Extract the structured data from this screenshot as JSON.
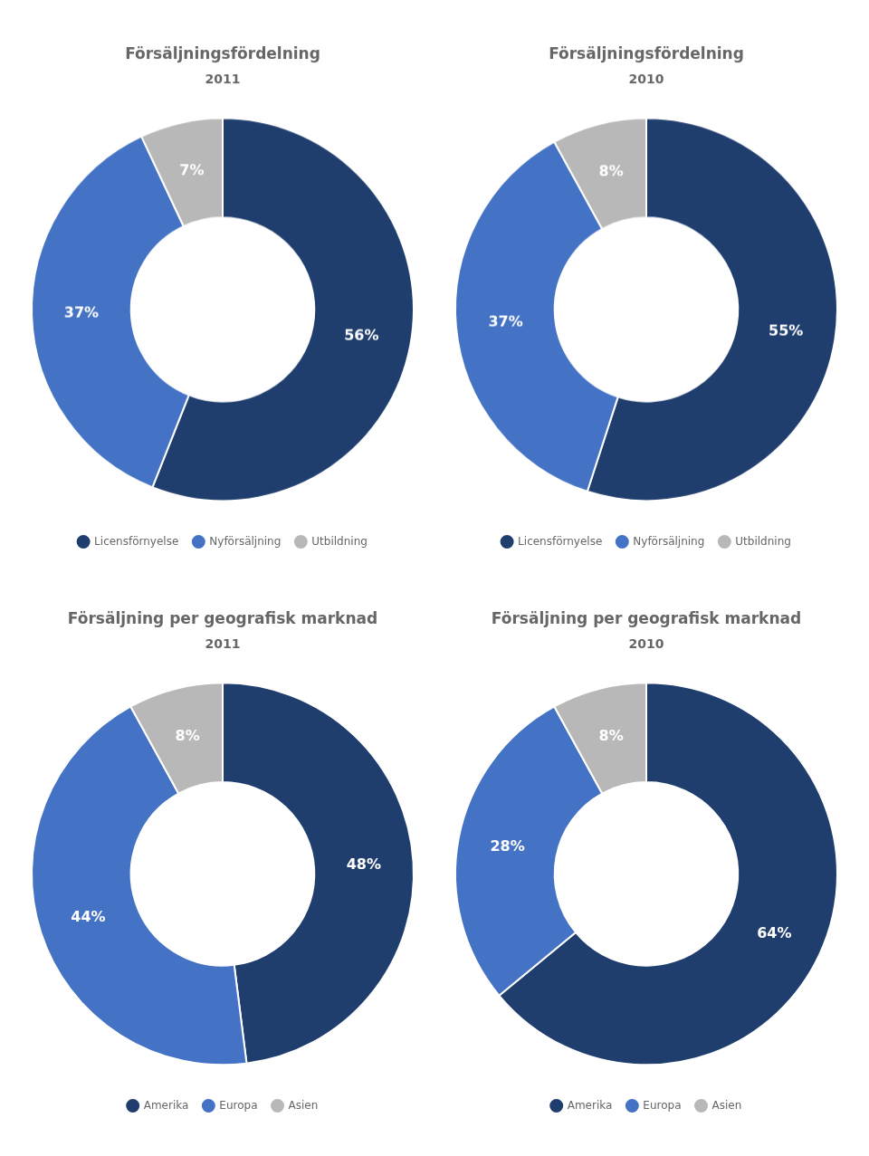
{
  "chart_data": [
    {
      "type": "donut",
      "title": "Försäljningsfördelning",
      "subtitle": "2011",
      "categories": [
        "Licensförnyelse",
        "Nyförsäljning",
        "Utbildning"
      ],
      "values": [
        56,
        37,
        7
      ],
      "value_labels": [
        "56%",
        "37%",
        "7%"
      ],
      "colors": [
        "#1f3e6e",
        "#4472c4",
        "#b8b8b8"
      ],
      "data_labels": true,
      "legend": "bottom"
    },
    {
      "type": "donut",
      "title": "Försäljningsfördelning",
      "subtitle": "2010",
      "categories": [
        "Licensförnyelse",
        "Nyförsäljning",
        "Utbildning"
      ],
      "values": [
        55,
        37,
        8
      ],
      "value_labels": [
        "55%",
        "37%",
        "8%"
      ],
      "colors": [
        "#1f3e6e",
        "#4472c4",
        "#b8b8b8"
      ],
      "data_labels": true,
      "legend": "bottom"
    },
    {
      "type": "donut",
      "title": "Försäljning per geografisk marknad",
      "subtitle": "2011",
      "categories": [
        "Amerika",
        "Europa",
        "Asien"
      ],
      "values": [
        48,
        44,
        8
      ],
      "value_labels": [
        "48%",
        "44%",
        "8%"
      ],
      "colors": [
        "#1f3e6e",
        "#4472c4",
        "#b8b8b8"
      ],
      "data_labels": true,
      "legend": "bottom"
    },
    {
      "type": "donut",
      "title": "Försäljning per geografisk marknad",
      "subtitle": "2010",
      "categories": [
        "Amerika",
        "Europa",
        "Asien"
      ],
      "values": [
        64,
        28,
        8
      ],
      "value_labels": [
        "64%",
        "28%",
        "8%"
      ],
      "colors": [
        "#1f3e6e",
        "#4472c4",
        "#b8b8b8"
      ],
      "data_labels": true,
      "legend": "bottom"
    }
  ]
}
